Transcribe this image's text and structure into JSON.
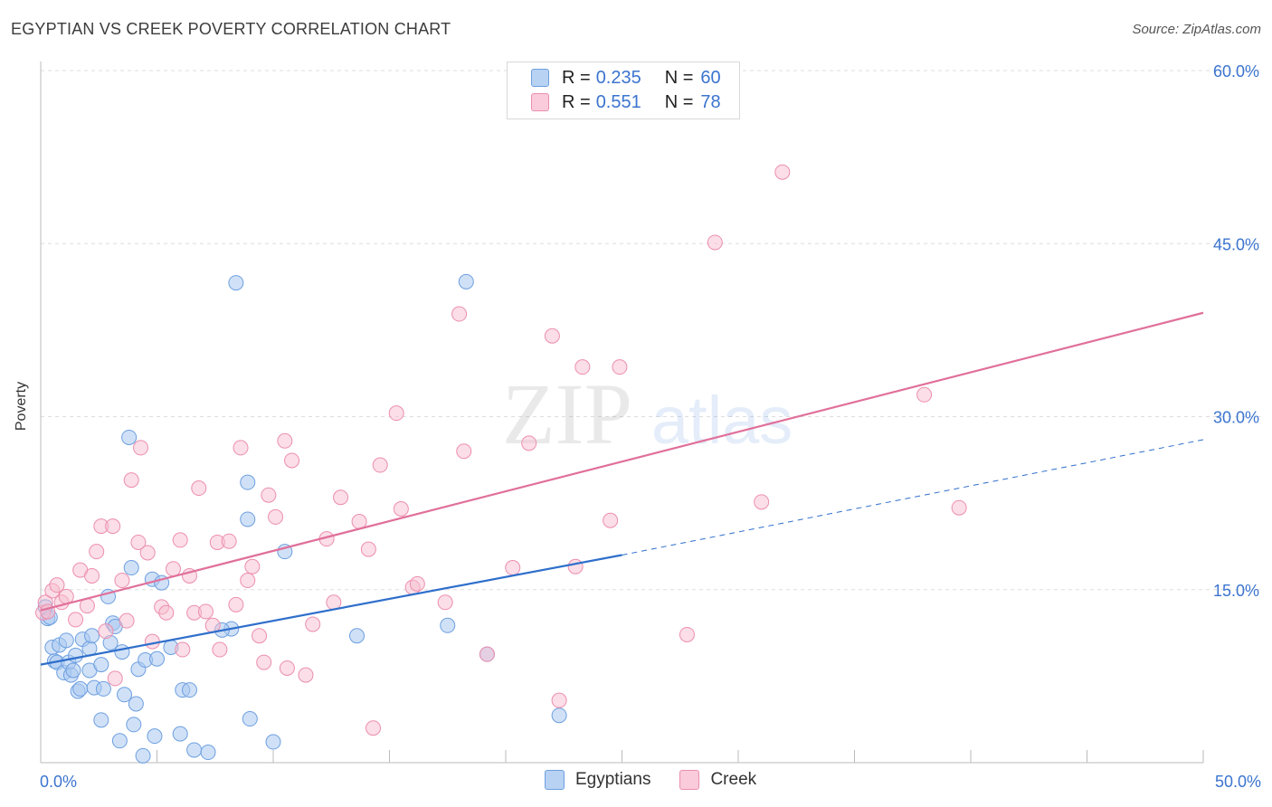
{
  "title": "EGYPTIAN VS CREEK POVERTY CORRELATION CHART",
  "source": "Source: ZipAtlas.com",
  "watermark": {
    "zip": "ZIP",
    "atlas": "atlas"
  },
  "colors": {
    "egyptians_fill": "#a9c8f0",
    "egyptians_stroke": "#6d9fe0",
    "egyptians_line": "#2f6fcb",
    "creek_fill": "#f7bdd0",
    "creek_stroke": "#ec8eae",
    "creek_line": "#e0709a",
    "axis_text": "#3b74cf"
  },
  "legend": {
    "rows": [
      {
        "r_label": "R =",
        "r_value": "0.235",
        "n_label": "N =",
        "n_value": "60"
      },
      {
        "r_label": "R =",
        "r_value": "0.551",
        "n_label": "N =",
        "n_value": "78"
      }
    ],
    "bottom": [
      "Egyptians",
      "Creek"
    ]
  },
  "chart_data": {
    "type": "scatter",
    "title": "EGYPTIAN VS CREEK POVERTY CORRELATION CHART",
    "xlabel": "",
    "ylabel": "Poverty",
    "xlim": [
      0,
      50
    ],
    "ylim": [
      0,
      60
    ],
    "x_tick_labels": [
      "0.0%",
      "50.0%"
    ],
    "y_tick_labels": [
      "15.0%",
      "30.0%",
      "45.0%",
      "60.0%"
    ],
    "y_ticks": [
      15,
      30,
      45,
      60
    ],
    "grid": true,
    "legend_position": "top-center",
    "series": [
      {
        "name": "Egyptians",
        "r": 0.235,
        "n": 60,
        "trend": {
          "x0": 0,
          "y0": 8.5,
          "x1": 25,
          "y1": 18.0,
          "dash_to_x": 50,
          "dash_to_y": 28.0
        },
        "points": [
          [
            0.3,
            12.5
          ],
          [
            0.5,
            10.0
          ],
          [
            0.6,
            8.8
          ],
          [
            0.7,
            8.7
          ],
          [
            0.8,
            10.2
          ],
          [
            1.0,
            7.8
          ],
          [
            1.1,
            10.6
          ],
          [
            1.2,
            8.7
          ],
          [
            1.3,
            7.6
          ],
          [
            1.4,
            8.0
          ],
          [
            1.6,
            6.2
          ],
          [
            1.7,
            6.4
          ],
          [
            1.8,
            10.7
          ],
          [
            2.1,
            9.9
          ],
          [
            2.1,
            8.0
          ],
          [
            2.3,
            6.5
          ],
          [
            2.6,
            3.7
          ],
          [
            2.6,
            8.5
          ],
          [
            2.7,
            6.4
          ],
          [
            2.9,
            14.4
          ],
          [
            3.0,
            10.4
          ],
          [
            3.1,
            12.1
          ],
          [
            3.2,
            11.8
          ],
          [
            3.4,
            1.9
          ],
          [
            3.6,
            5.9
          ],
          [
            3.8,
            28.2
          ],
          [
            3.9,
            16.9
          ],
          [
            4.0,
            3.3
          ],
          [
            4.1,
            5.1
          ],
          [
            4.2,
            8.1
          ],
          [
            4.4,
            0.6
          ],
          [
            4.5,
            8.9
          ],
          [
            4.8,
            15.9
          ],
          [
            4.9,
            2.3
          ],
          [
            5.2,
            15.6
          ],
          [
            5.6,
            10.0
          ],
          [
            6.0,
            2.5
          ],
          [
            6.1,
            6.3
          ],
          [
            6.4,
            6.3
          ],
          [
            6.6,
            1.1
          ],
          [
            7.2,
            0.9
          ],
          [
            8.2,
            11.6
          ],
          [
            8.4,
            41.6
          ],
          [
            8.9,
            24.3
          ],
          [
            8.9,
            21.1
          ],
          [
            9.0,
            3.8
          ],
          [
            10.0,
            1.8
          ],
          [
            10.5,
            18.3
          ],
          [
            13.6,
            11.0
          ],
          [
            17.5,
            11.9
          ],
          [
            18.3,
            41.7
          ],
          [
            19.2,
            9.4
          ],
          [
            22.3,
            4.1
          ],
          [
            0.2,
            13.5
          ],
          [
            0.4,
            12.6
          ],
          [
            1.5,
            9.3
          ],
          [
            2.2,
            11.0
          ],
          [
            3.5,
            9.6
          ],
          [
            5.0,
            9.0
          ],
          [
            7.8,
            11.5
          ]
        ]
      },
      {
        "name": "Creek",
        "r": 0.551,
        "n": 78,
        "trend": {
          "x0": 0,
          "y0": 13.2,
          "x1": 50,
          "y1": 39.0
        },
        "points": [
          [
            0.1,
            13.0
          ],
          [
            0.2,
            13.9
          ],
          [
            0.3,
            13.1
          ],
          [
            0.5,
            14.9
          ],
          [
            0.7,
            15.4
          ],
          [
            0.9,
            13.9
          ],
          [
            1.1,
            14.4
          ],
          [
            1.5,
            12.4
          ],
          [
            1.7,
            16.7
          ],
          [
            2.0,
            13.6
          ],
          [
            2.2,
            16.2
          ],
          [
            2.4,
            18.3
          ],
          [
            2.6,
            20.5
          ],
          [
            2.8,
            11.4
          ],
          [
            3.1,
            20.5
          ],
          [
            3.2,
            7.3
          ],
          [
            3.5,
            15.8
          ],
          [
            3.7,
            12.3
          ],
          [
            3.9,
            24.5
          ],
          [
            4.2,
            19.1
          ],
          [
            4.3,
            27.3
          ],
          [
            4.6,
            18.2
          ],
          [
            4.8,
            10.5
          ],
          [
            5.2,
            13.5
          ],
          [
            5.4,
            13.0
          ],
          [
            5.7,
            16.8
          ],
          [
            6.0,
            19.3
          ],
          [
            6.1,
            9.8
          ],
          [
            6.4,
            16.2
          ],
          [
            6.6,
            13.0
          ],
          [
            6.8,
            23.8
          ],
          [
            7.1,
            13.1
          ],
          [
            7.4,
            11.9
          ],
          [
            7.6,
            19.1
          ],
          [
            7.7,
            9.8
          ],
          [
            8.1,
            19.2
          ],
          [
            8.4,
            13.7
          ],
          [
            8.6,
            27.3
          ],
          [
            8.9,
            15.8
          ],
          [
            9.1,
            17.0
          ],
          [
            9.4,
            11.0
          ],
          [
            9.6,
            8.7
          ],
          [
            9.8,
            23.2
          ],
          [
            10.1,
            21.3
          ],
          [
            10.5,
            27.9
          ],
          [
            10.6,
            8.2
          ],
          [
            10.8,
            26.2
          ],
          [
            11.4,
            7.6
          ],
          [
            11.7,
            12.0
          ],
          [
            12.3,
            19.4
          ],
          [
            12.6,
            13.9
          ],
          [
            12.9,
            23.0
          ],
          [
            13.7,
            20.9
          ],
          [
            14.1,
            18.5
          ],
          [
            14.3,
            3.0
          ],
          [
            14.6,
            25.8
          ],
          [
            15.3,
            30.3
          ],
          [
            15.5,
            22.0
          ],
          [
            16.0,
            15.2
          ],
          [
            16.2,
            15.5
          ],
          [
            17.4,
            13.9
          ],
          [
            18.0,
            38.9
          ],
          [
            18.2,
            27.0
          ],
          [
            19.2,
            9.4
          ],
          [
            20.3,
            16.9
          ],
          [
            21.0,
            27.7
          ],
          [
            22.0,
            37.0
          ],
          [
            22.3,
            5.4
          ],
          [
            23.0,
            17.0
          ],
          [
            23.3,
            34.3
          ],
          [
            24.5,
            21.0
          ],
          [
            24.9,
            34.3
          ],
          [
            27.8,
            11.1
          ],
          [
            29.0,
            45.1
          ],
          [
            31.0,
            22.6
          ],
          [
            31.9,
            51.2
          ],
          [
            38.0,
            31.9
          ],
          [
            39.5,
            22.1
          ]
        ]
      }
    ]
  }
}
